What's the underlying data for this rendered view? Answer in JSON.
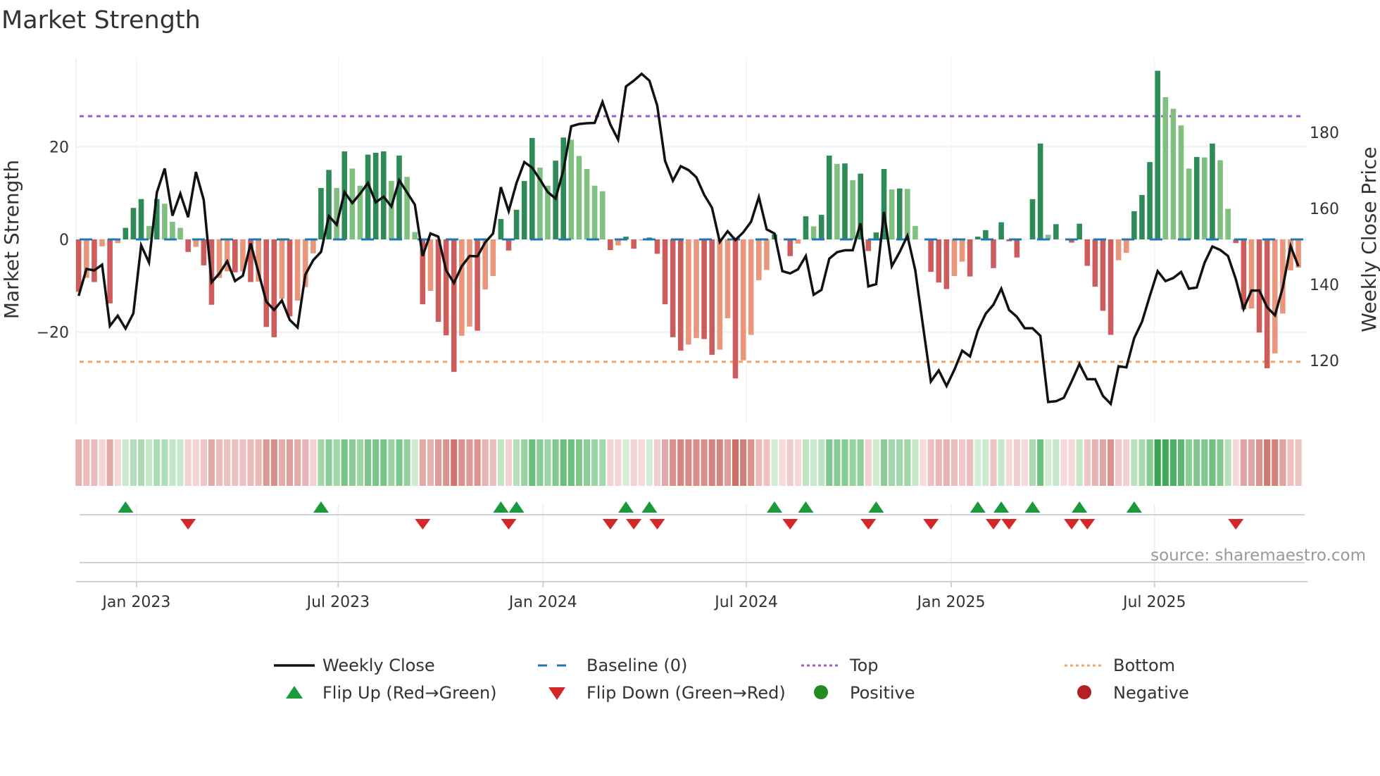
{
  "title": "Market Strength",
  "source": "source: sharemaestro.com",
  "colors": {
    "green_dark": "#2e8b57",
    "green_light": "#7fbf7f",
    "red_dark": "#cd5c5c",
    "red_light": "#e9967a",
    "price_line": "#111111",
    "baseline": "#1f77b4",
    "top": "#9b59d0",
    "bottom": "#f4a460",
    "flip_up": "#1a9a3a",
    "flip_down": "#d62728",
    "positive": "#228b22",
    "negative": "#b22222"
  },
  "legend": [
    {
      "key": "weekly-close",
      "label": "Weekly Close"
    },
    {
      "key": "baseline",
      "label": "Baseline (0)"
    },
    {
      "key": "top",
      "label": "Top"
    },
    {
      "key": "bottom",
      "label": "Bottom"
    },
    {
      "key": "flip-up",
      "label": "Flip Up (Red→Green)"
    },
    {
      "key": "flip-down",
      "label": "Flip Down (Green→Red)"
    },
    {
      "key": "positive",
      "label": "Positive"
    },
    {
      "key": "negative",
      "label": "Negative"
    }
  ],
  "chart_data": {
    "type": "bar",
    "title": "Market Strength",
    "ylabel": "Market Strength",
    "y2label": "Weekly Close Price",
    "ylim": [
      -39,
      36.5
    ],
    "y2lim": [
      105,
      197
    ],
    "yticks": [
      {
        "value": 20,
        "label": "20"
      },
      {
        "value": 0,
        "label": "0"
      },
      {
        "value": -20,
        "label": "−20"
      }
    ],
    "y2ticks": [
      {
        "value": 180,
        "label": "180"
      },
      {
        "value": 160,
        "label": "160"
      },
      {
        "value": 140,
        "label": "140"
      },
      {
        "value": 120,
        "label": "120"
      }
    ],
    "xticks": [
      {
        "week": 8.4,
        "label": "Jan 2023"
      },
      {
        "week": 34.2,
        "label": "Jul 2023"
      },
      {
        "week": 60.4,
        "label": "Jan 2024"
      },
      {
        "week": 86.4,
        "label": "Jul 2024"
      },
      {
        "week": 112.6,
        "label": "Jan 2025"
      },
      {
        "week": 138.6,
        "label": "Jul 2025"
      }
    ],
    "top_level": 26.6,
    "bottom_level": -26.4,
    "baseline": 0,
    "strength": [
      -11.3,
      -8.3,
      -9.2,
      -1.5,
      -13.8,
      -0.8,
      2.5,
      6.8,
      8.7,
      2.9,
      8.7,
      7.7,
      3.8,
      2.5,
      -2.7,
      -1.6,
      -5.6,
      -14.1,
      -8.3,
      -6.9,
      -7.1,
      -6.9,
      -9.2,
      -9.1,
      -18.9,
      -21.1,
      -12.8,
      -16.6,
      -13.2,
      -10.3,
      -3.0,
      11.1,
      15.0,
      11.1,
      19.0,
      15.3,
      11.6,
      18.3,
      18.7,
      19.0,
      12.6,
      18.1,
      13.5,
      1.6,
      -14.0,
      -11.1,
      -17.8,
      -20.7,
      -28.6,
      -20.8,
      -18.8,
      -19.7,
      -10.8,
      -7.9,
      4.4,
      -2.4,
      6.4,
      12.6,
      21.9,
      15.5,
      11.6,
      17.0,
      22.0,
      21.5,
      18.0,
      15.2,
      11.6,
      10.4,
      -2.3,
      -1.3,
      0.6,
      -2.0,
      -0.2,
      0.4,
      -3.1,
      -14.0,
      -21.1,
      -24.0,
      -22.7,
      -21.3,
      -21.5,
      -24.9,
      -23.8,
      -17.0,
      -30.0,
      -26.1,
      -20.6,
      -8.8,
      -6.6,
      1.1,
      0,
      -3.6,
      -0.9,
      5.0,
      2.8,
      5.3,
      18.1,
      16.3,
      16.4,
      12.8,
      14.2,
      -2.5,
      1.5,
      15.2,
      10.8,
      11.0,
      10.9,
      2.9,
      0,
      -7.0,
      -9.3,
      -10.7,
      -7.9,
      -4.8,
      -8.0,
      0.6,
      2.0,
      -6.2,
      3.7,
      -0.4,
      -3.9,
      0,
      8.7,
      20.7,
      1.0,
      3.3,
      0,
      -0.7,
      3.4,
      -5.7,
      -10.2,
      -15.4,
      -20.6,
      -4.5,
      -2.9,
      6.1,
      9.6,
      16.7,
      36.4,
      30.7,
      28.2,
      24.6,
      15.3,
      17.8,
      17.7,
      20.7,
      17.1,
      6.6,
      -0.8,
      -15.1,
      -14.9,
      -20.1,
      -27.8,
      -24.6,
      -16.0,
      -6.7,
      -6.1
    ],
    "weekly_close": [
      137.0,
      144.1,
      143.7,
      145.2,
      129.1,
      131.8,
      128.4,
      132.4,
      150.3,
      145.8,
      164.2,
      170.5,
      158.1,
      163.9,
      157.7,
      169.6,
      162.2,
      140.6,
      142.9,
      146.1,
      140.9,
      142.3,
      150.8,
      143.2,
      135.5,
      133.3,
      135.8,
      130.7,
      128.7,
      142.6,
      146.4,
      148.6,
      158.0,
      155.7,
      164.3,
      161.4,
      163.9,
      166.7,
      161.6,
      163.1,
      160.5,
      167.4,
      164.2,
      161.0,
      147.5,
      153.4,
      152.6,
      143.7,
      140.4,
      144.8,
      147.5,
      147.4,
      151.1,
      153.4,
      165.6,
      159.3,
      166.7,
      172.2,
      170.7,
      167.6,
      164.3,
      162.6,
      170.1,
      181.6,
      182.2,
      182.4,
      182.5,
      188.0,
      182.1,
      178.1,
      192.1,
      193.6,
      195.4,
      193.6,
      187.0,
      172.5,
      167.3,
      171.1,
      170.1,
      168.2,
      163.6,
      160.2,
      151.2,
      154.0,
      151.7,
      153.7,
      156.5,
      163.0,
      154.5,
      153.4,
      143.5,
      142.9,
      144.0,
      147.5,
      137.3,
      138.6,
      146.8,
      148.5,
      149.0,
      149.0,
      156.1,
      139.5,
      140.1,
      159.1,
      144.8,
      148.5,
      152.8,
      143.8,
      129.0,
      114.5,
      117.4,
      113.3,
      117.6,
      122.6,
      121.1,
      127.9,
      132.3,
      134.7,
      138.9,
      133.3,
      131.5,
      128.5,
      128.5,
      126.5,
      109.1,
      109.3,
      110.2,
      114.5,
      119.1,
      115.1,
      115.1,
      110.7,
      108.6,
      118.5,
      118.2,
      125.9,
      130.2,
      137.0,
      143.5,
      140.9,
      141.7,
      143.3,
      138.9,
      139.2,
      145.7,
      150.0,
      149.1,
      147.5,
      141.4,
      133.6,
      138.4,
      138.4,
      134.0,
      131.9,
      139.2,
      150.1,
      144.8
    ],
    "flip_up_weeks": [
      7,
      32,
      55,
      57,
      71,
      74,
      90,
      94,
      103,
      116,
      119,
      123,
      129,
      136
    ],
    "flip_down_weeks": [
      15,
      45,
      56,
      69,
      72,
      75,
      92,
      102,
      110,
      118,
      120,
      128,
      130,
      149
    ],
    "legend_position": "bottom"
  }
}
